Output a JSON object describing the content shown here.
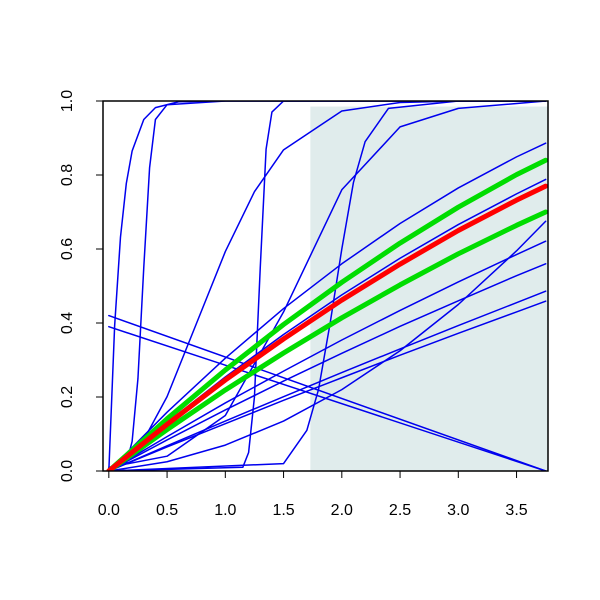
{
  "chart_data": {
    "type": "line",
    "xlim": [
      -0.05,
      3.77
    ],
    "ylim": [
      0,
      1
    ],
    "xticks": [
      {
        "value": 0,
        "label": "0.0"
      },
      {
        "value": 0.5,
        "label": "0.5"
      },
      {
        "value": 1,
        "label": "1.0"
      },
      {
        "value": 1.5,
        "label": "1.5"
      },
      {
        "value": 2,
        "label": "2.0"
      },
      {
        "value": 2.5,
        "label": "2.5"
      },
      {
        "value": 3,
        "label": "3.0"
      },
      {
        "value": 3.5,
        "label": "3.5"
      }
    ],
    "yticks": [
      {
        "value": 0,
        "label": "0.0"
      },
      {
        "value": 0.2,
        "label": "0.2"
      },
      {
        "value": 0.4,
        "label": "0.4"
      },
      {
        "value": 0.6,
        "label": "0.6"
      },
      {
        "value": 0.8,
        "label": "0.8"
      },
      {
        "value": 1,
        "label": "1.0"
      }
    ],
    "shaded_region": {
      "xmin": 1.73,
      "xmax": 3.77,
      "ymin": 0,
      "ymax": 0.985,
      "color": "#e0ecec"
    },
    "series": [
      {
        "color": "#0000ee",
        "width": 1.5,
        "x": [
          0,
          0.5,
          1,
          1.5,
          2,
          2.5,
          3,
          3.5,
          3.75
        ],
        "values": [
          0,
          0.159,
          0.305,
          0.439,
          0.56,
          0.669,
          0.765,
          0.849,
          0.886
        ]
      },
      {
        "color": "#0000ee",
        "width": 1.5,
        "x": [
          0,
          0.5,
          1,
          1.5,
          2,
          2.5,
          3,
          3.5,
          3.75
        ],
        "values": [
          0,
          0.131,
          0.254,
          0.369,
          0.476,
          0.575,
          0.666,
          0.749,
          0.788
        ]
      },
      {
        "color": "#0000ee",
        "width": 1.5,
        "x": [
          0,
          0.5,
          1,
          1.5,
          2,
          2.5,
          3,
          3.5,
          3.75
        ],
        "values": [
          0,
          0.093,
          0.184,
          0.27,
          0.354,
          0.434,
          0.511,
          0.585,
          0.621
        ]
      },
      {
        "color": "#0000ee",
        "width": 1.5,
        "x": [
          0,
          0.5,
          1,
          1.5,
          2,
          2.5,
          3,
          3.5,
          3.75
        ],
        "values": [
          0,
          0.084,
          0.165,
          0.243,
          0.318,
          0.391,
          0.46,
          0.528,
          0.56
        ]
      },
      {
        "color": "#0000ee",
        "width": 1.5,
        "x": [
          0,
          0.5,
          1,
          1.5,
          2,
          2.5,
          3,
          3.5,
          3.75
        ],
        "values": [
          0,
          0.065,
          0.128,
          0.191,
          0.252,
          0.313,
          0.372,
          0.43,
          0.459
        ]
      },
      {
        "color": "#0000ee",
        "width": 1.5,
        "x": [
          0,
          0.5,
          1,
          1.5,
          2,
          2.5,
          3,
          3.5,
          3.75
        ],
        "values": [
          0,
          0.068,
          0.135,
          0.201,
          0.266,
          0.33,
          0.393,
          0.455,
          0.486
        ]
      },
      {
        "color": "#0000ee",
        "width": 1.5,
        "x": [
          0,
          0.5,
          1,
          1.5,
          2,
          2.5,
          3,
          3.5,
          3.75
        ],
        "values": [
          0,
          0.025,
          0.07,
          0.135,
          0.22,
          0.325,
          0.45,
          0.595,
          0.675
        ]
      },
      {
        "color": "#0000ee",
        "width": 1.5,
        "x": [
          0,
          3.75
        ],
        "values": [
          0.42,
          0
        ]
      },
      {
        "color": "#0000ee",
        "width": 1.5,
        "x": [
          0,
          3.75
        ],
        "values": [
          0.39,
          0
        ]
      },
      {
        "color": "#0000ee",
        "width": 1.5,
        "x": [
          0,
          0.25,
          0.5,
          0.75,
          1,
          1.25,
          1.5,
          2,
          2.5,
          3,
          3.75
        ],
        "values": [
          0,
          0.055,
          0.201,
          0.397,
          0.593,
          0.755,
          0.868,
          0.973,
          0.996,
          1,
          1
        ]
      },
      {
        "color": "#0000ee",
        "width": 1.5,
        "x": [
          0,
          0.05,
          0.1,
          0.15,
          0.2,
          0.3,
          0.4,
          0.6,
          1,
          3.75
        ],
        "values": [
          0,
          0.393,
          0.632,
          0.777,
          0.865,
          0.95,
          0.982,
          0.998,
          1,
          1
        ]
      },
      {
        "color": "#0000ee",
        "width": 1.5,
        "x": [
          0,
          0.15,
          0.2,
          0.25,
          0.3,
          0.35,
          0.4,
          0.5,
          1,
          3.75
        ],
        "values": [
          0,
          0.02,
          0.08,
          0.25,
          0.55,
          0.82,
          0.95,
          0.99,
          1,
          1
        ]
      },
      {
        "color": "#0000ee",
        "width": 1.5,
        "x": [
          0,
          1.15,
          1.2,
          1.25,
          1.3,
          1.35,
          1.4,
          1.5,
          3.75
        ],
        "values": [
          0,
          0.01,
          0.05,
          0.2,
          0.55,
          0.87,
          0.97,
          1,
          1
        ]
      },
      {
        "color": "#0000ee",
        "width": 1.5,
        "x": [
          0,
          1.5,
          1.7,
          1.8,
          1.9,
          2.0,
          2.1,
          2.2,
          2.4,
          3,
          3.75
        ],
        "values": [
          0,
          0.02,
          0.11,
          0.22,
          0.4,
          0.6,
          0.78,
          0.89,
          0.98,
          1,
          1
        ]
      },
      {
        "color": "#0000ee",
        "width": 1.5,
        "x": [
          0,
          0.5,
          1,
          1.5,
          2,
          2.5,
          3,
          3.75
        ],
        "values": [
          0.01,
          0.04,
          0.15,
          0.43,
          0.76,
          0.93,
          0.98,
          1
        ]
      },
      {
        "color": "#00dd00",
        "width": 5,
        "x": [
          0,
          0.5,
          1,
          1.5,
          2,
          2.5,
          3,
          3.5,
          3.75
        ],
        "values": [
          0,
          0.141,
          0.273,
          0.396,
          0.51,
          0.616,
          0.713,
          0.801,
          0.84
        ]
      },
      {
        "color": "#00dd00",
        "width": 5,
        "x": [
          0,
          0.5,
          1,
          1.5,
          2,
          2.5,
          3,
          3.5,
          3.75
        ],
        "values": [
          0,
          0.112,
          0.219,
          0.319,
          0.414,
          0.503,
          0.587,
          0.664,
          0.7
        ]
      },
      {
        "color": "#ff0000",
        "width": 5,
        "x": [
          0,
          0.5,
          1,
          1.5,
          2,
          2.5,
          3,
          3.5,
          3.75
        ],
        "values": [
          0,
          0.126,
          0.246,
          0.357,
          0.462,
          0.559,
          0.65,
          0.732,
          0.77
        ]
      }
    ]
  }
}
